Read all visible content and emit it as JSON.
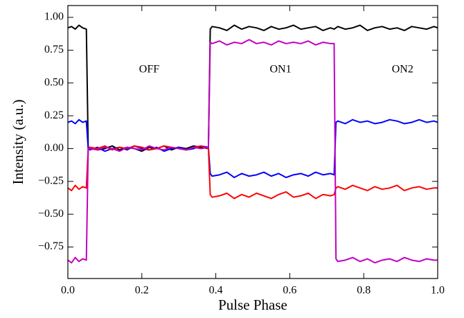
{
  "chart_data": {
    "type": "line",
    "xlabel": "Pulse Phase",
    "ylabel": "Intensity (a.u.)",
    "x": [
      0,
      0.01,
      0.02,
      0.03,
      0.04,
      0.05,
      0.055,
      0.06,
      0.08,
      0.1,
      0.12,
      0.14,
      0.16,
      0.18,
      0.2,
      0.22,
      0.24,
      0.26,
      0.28,
      0.3,
      0.32,
      0.34,
      0.36,
      0.38,
      0.385,
      0.39,
      0.41,
      0.43,
      0.45,
      0.47,
      0.49,
      0.51,
      0.53,
      0.55,
      0.57,
      0.59,
      0.61,
      0.63,
      0.65,
      0.67,
      0.69,
      0.71,
      0.72,
      0.725,
      0.73,
      0.75,
      0.77,
      0.79,
      0.81,
      0.83,
      0.85,
      0.87,
      0.89,
      0.91,
      0.93,
      0.95,
      0.97,
      0.99,
      1.0
    ],
    "series": [
      {
        "color": "#000000",
        "values": [
          0.92,
          0.93,
          0.91,
          0.94,
          0.92,
          0.91,
          0.0,
          0.01,
          -0.01,
          0.0,
          0.02,
          -0.01,
          0.01,
          0.0,
          -0.02,
          0.01,
          0.0,
          0.02,
          -0.01,
          0.01,
          0.0,
          0.02,
          0.01,
          0.0,
          0.91,
          0.93,
          0.92,
          0.9,
          0.94,
          0.91,
          0.93,
          0.92,
          0.9,
          0.93,
          0.91,
          0.92,
          0.94,
          0.91,
          0.92,
          0.93,
          0.9,
          0.92,
          0.91,
          0.92,
          0.93,
          0.91,
          0.92,
          0.94,
          0.9,
          0.92,
          0.93,
          0.91,
          0.92,
          0.9,
          0.93,
          0.92,
          0.91,
          0.93,
          0.92
        ]
      },
      {
        "color": "#0000ff",
        "values": [
          0.2,
          0.21,
          0.19,
          0.22,
          0.2,
          0.21,
          0.0,
          -0.01,
          0.01,
          -0.02,
          0.0,
          0.01,
          -0.01,
          0.02,
          0.0,
          -0.01,
          0.01,
          -0.02,
          0.0,
          0.01,
          -0.01,
          0.0,
          0.02,
          0.01,
          -0.19,
          -0.21,
          -0.2,
          -0.18,
          -0.22,
          -0.19,
          -0.21,
          -0.2,
          -0.18,
          -0.21,
          -0.19,
          -0.22,
          -0.2,
          -0.19,
          -0.21,
          -0.18,
          -0.2,
          -0.19,
          -0.2,
          0.2,
          0.21,
          0.19,
          0.22,
          0.2,
          0.21,
          0.19,
          0.2,
          0.22,
          0.21,
          0.19,
          0.2,
          0.22,
          0.2,
          0.21,
          0.2
        ]
      },
      {
        "color": "#ff0000",
        "values": [
          -0.3,
          -0.32,
          -0.28,
          -0.31,
          -0.29,
          -0.3,
          0.0,
          0.01,
          0.0,
          0.02,
          -0.01,
          0.01,
          0.0,
          0.02,
          0.01,
          -0.01,
          0.0,
          0.02,
          0.01,
          0.0,
          -0.01,
          0.01,
          0.02,
          0.0,
          -0.35,
          -0.37,
          -0.36,
          -0.34,
          -0.38,
          -0.35,
          -0.37,
          -0.34,
          -0.36,
          -0.38,
          -0.35,
          -0.33,
          -0.37,
          -0.36,
          -0.34,
          -0.38,
          -0.35,
          -0.36,
          -0.35,
          -0.3,
          -0.29,
          -0.31,
          -0.28,
          -0.3,
          -0.32,
          -0.29,
          -0.31,
          -0.3,
          -0.28,
          -0.32,
          -0.3,
          -0.29,
          -0.31,
          -0.3,
          -0.3
        ]
      },
      {
        "color": "#c000c0",
        "values": [
          -0.85,
          -0.87,
          -0.83,
          -0.86,
          -0.84,
          -0.85,
          0.0,
          0.0,
          -0.01,
          0.01,
          0.0,
          -0.02,
          0.01,
          0.0,
          -0.01,
          0.02,
          0.0,
          -0.01,
          0.01,
          0.0,
          -0.01,
          0.01,
          0.0,
          0.01,
          0.81,
          0.8,
          0.82,
          0.79,
          0.81,
          0.8,
          0.83,
          0.8,
          0.81,
          0.79,
          0.82,
          0.8,
          0.81,
          0.8,
          0.82,
          0.79,
          0.81,
          0.8,
          0.8,
          -0.84,
          -0.86,
          -0.85,
          -0.83,
          -0.86,
          -0.84,
          -0.87,
          -0.85,
          -0.84,
          -0.86,
          -0.83,
          -0.85,
          -0.86,
          -0.84,
          -0.85,
          -0.85
        ]
      }
    ],
    "annotations": [
      {
        "text": "OFF",
        "x": 0.22,
        "y": 0.6
      },
      {
        "text": "ON1",
        "x": 0.575,
        "y": 0.6
      },
      {
        "text": "ON2",
        "x": 0.905,
        "y": 0.6
      }
    ],
    "xlim": [
      0,
      1
    ],
    "ylim": [
      -0.99,
      1.09
    ],
    "xticks": [
      {
        "value": 0,
        "label": "0.0"
      },
      {
        "value": 0.2,
        "label": "0.2"
      },
      {
        "value": 0.4,
        "label": "0.4"
      },
      {
        "value": 0.6,
        "label": "0.6"
      },
      {
        "value": 0.8,
        "label": "0.8"
      },
      {
        "value": 1,
        "label": "1.0"
      }
    ],
    "yticks": [
      {
        "value": -0.75,
        "label": "−0.75"
      },
      {
        "value": -0.5,
        "label": "−0.50"
      },
      {
        "value": -0.25,
        "label": "−0.25"
      },
      {
        "value": 0,
        "label": "0.00"
      },
      {
        "value": 0.25,
        "label": "0.25"
      },
      {
        "value": 0.5,
        "label": "0.50"
      },
      {
        "value": 0.75,
        "label": "0.75"
      },
      {
        "value": 1,
        "label": "1.00"
      }
    ]
  }
}
